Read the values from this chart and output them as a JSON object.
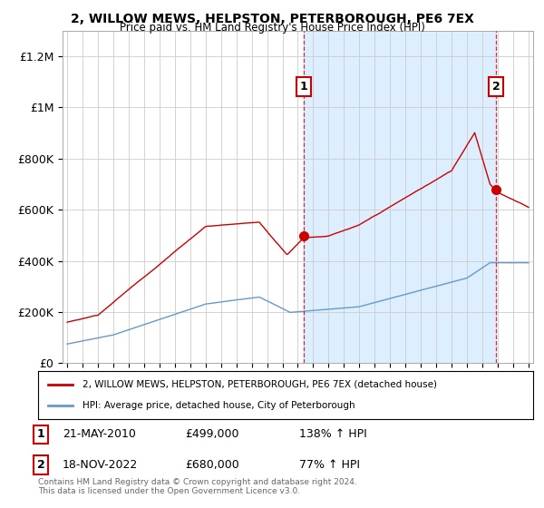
{
  "title": "2, WILLOW MEWS, HELPSTON, PETERBOROUGH, PE6 7EX",
  "subtitle": "Price paid vs. HM Land Registry's House Price Index (HPI)",
  "ylim": [
    0,
    1300000
  ],
  "yticks": [
    0,
    200000,
    400000,
    600000,
    800000,
    1000000,
    1200000
  ],
  "ytick_labels": [
    "£0",
    "£200K",
    "£400K",
    "£600K",
    "£800K",
    "£1M",
    "£1.2M"
  ],
  "xstart_year": 1995,
  "xend_year": 2025,
  "sale1_date": "21-MAY-2010",
  "sale1_price": 499000,
  "sale1_year": 2010.38,
  "sale1_label": "1",
  "sale1_hpi_pct": "138%",
  "sale2_date": "18-NOV-2022",
  "sale2_price": 680000,
  "sale2_year": 2022.88,
  "sale2_label": "2",
  "sale2_hpi_pct": "77%",
  "legend_entry1": "2, WILLOW MEWS, HELPSTON, PETERBOROUGH, PE6 7EX (detached house)",
  "legend_entry2": "HPI: Average price, detached house, City of Peterborough",
  "footer": "Contains HM Land Registry data © Crown copyright and database right 2024.\nThis data is licensed under the Open Government Licence v3.0.",
  "line_color_red": "#cc0000",
  "line_color_blue": "#6699cc",
  "shade_color": "#ddeeff",
  "bg_color": "#ffffff",
  "grid_color": "#cccccc",
  "annotation_color": "#cc0000"
}
